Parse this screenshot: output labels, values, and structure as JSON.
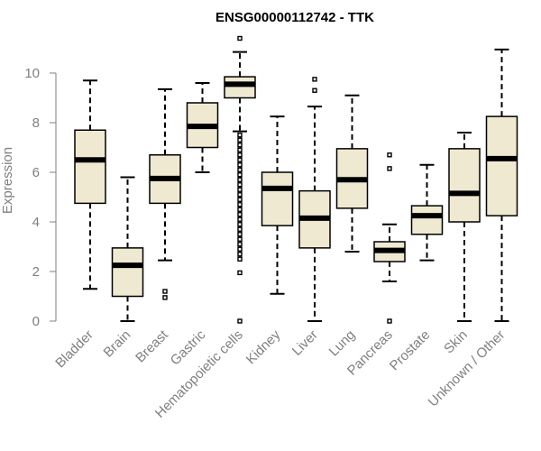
{
  "chart_data": {
    "type": "boxplot",
    "title": "ENSG00000112742 - TTK",
    "xlabel": "",
    "ylabel": "Expression",
    "ylim": [
      0,
      11.4
    ],
    "yticks": [
      "0",
      "2",
      "4",
      "6",
      "8",
      "10"
    ],
    "grid": false,
    "box_fill": "#efe9d2",
    "box_stroke": "#000000",
    "categories": [
      "Bladder",
      "Brain",
      "Breast",
      "Gastric",
      "Hematopoietic cells",
      "Kidney",
      "Liver",
      "Lung",
      "Pancreas",
      "Prostate",
      "Skin",
      "Unknown / Other"
    ],
    "series": [
      {
        "name": "Bladder",
        "whisker_low": 1.3,
        "q1": 4.75,
        "median": 6.5,
        "q3": 7.7,
        "whisker_high": 9.7,
        "outliers": []
      },
      {
        "name": "Brain",
        "whisker_low": 0.0,
        "q1": 1.0,
        "median": 2.25,
        "q3": 2.95,
        "whisker_high": 5.8,
        "outliers": []
      },
      {
        "name": "Breast",
        "whisker_low": 2.45,
        "q1": 4.75,
        "median": 5.75,
        "q3": 6.7,
        "whisker_high": 9.35,
        "outliers": [
          1.2,
          0.95
        ]
      },
      {
        "name": "Gastric",
        "whisker_low": 6.0,
        "q1": 7.0,
        "median": 7.85,
        "q3": 8.8,
        "whisker_high": 9.6,
        "outliers": []
      },
      {
        "name": "Hematopoietic cells",
        "whisker_low": 7.65,
        "q1": 9.0,
        "median": 9.55,
        "q3": 9.85,
        "whisker_high": 10.85,
        "outliers": [
          11.4,
          7.5,
          7.3,
          7.1,
          6.9,
          6.7,
          6.5,
          6.3,
          6.1,
          5.9,
          5.7,
          5.5,
          5.3,
          5.1,
          4.9,
          4.7,
          4.5,
          4.3,
          4.1,
          3.9,
          3.7,
          3.5,
          3.3,
          3.1,
          2.9,
          2.7,
          2.5,
          1.95,
          0.0
        ]
      },
      {
        "name": "Kidney",
        "whisker_low": 1.1,
        "q1": 3.85,
        "median": 5.35,
        "q3": 6.0,
        "whisker_high": 8.25,
        "outliers": []
      },
      {
        "name": "Liver",
        "whisker_low": 0.0,
        "q1": 2.95,
        "median": 4.15,
        "q3": 5.25,
        "whisker_high": 8.65,
        "outliers": [
          9.75,
          9.3
        ]
      },
      {
        "name": "Lung",
        "whisker_low": 2.8,
        "q1": 4.55,
        "median": 5.7,
        "q3": 6.95,
        "whisker_high": 9.1,
        "outliers": []
      },
      {
        "name": "Pancreas",
        "whisker_low": 1.6,
        "q1": 2.4,
        "median": 2.85,
        "q3": 3.2,
        "whisker_high": 3.9,
        "outliers": [
          6.7,
          6.15,
          0.0
        ]
      },
      {
        "name": "Prostate",
        "whisker_low": 2.45,
        "q1": 3.5,
        "median": 4.25,
        "q3": 4.65,
        "whisker_high": 6.3,
        "outliers": []
      },
      {
        "name": "Skin",
        "whisker_low": 0.0,
        "q1": 4.0,
        "median": 5.15,
        "q3": 6.95,
        "whisker_high": 7.6,
        "outliers": []
      },
      {
        "name": "Unknown / Other",
        "whisker_low": 0.0,
        "q1": 4.25,
        "median": 6.55,
        "q3": 8.25,
        "whisker_high": 10.95,
        "outliers": []
      }
    ]
  }
}
